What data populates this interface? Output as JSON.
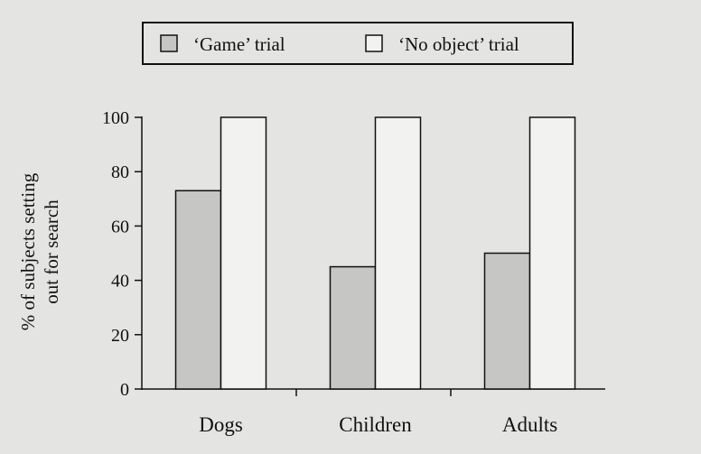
{
  "chart_data": {
    "type": "bar",
    "categories": [
      "Dogs",
      "Children",
      "Adults"
    ],
    "series": [
      {
        "name": "‘Game’ trial",
        "values": [
          73,
          45,
          50
        ],
        "color": "#c6c6c4"
      },
      {
        "name": "‘No object’ trial",
        "values": [
          100,
          100,
          100
        ],
        "color": "#f2f2f0"
      }
    ],
    "title": "",
    "xlabel": "",
    "ylabel_lines": [
      "% of subjects setting",
      "out for search"
    ],
    "ylim": [
      0,
      100
    ],
    "yticks": [
      0,
      20,
      40,
      60,
      80,
      100
    ],
    "grid": false,
    "legend_position": "top"
  }
}
